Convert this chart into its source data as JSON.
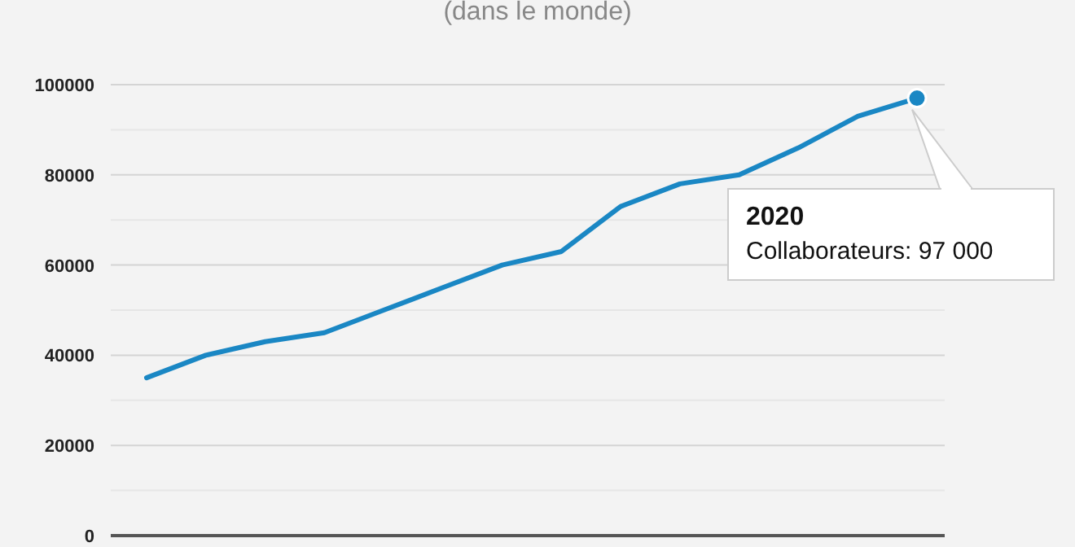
{
  "chart_data": {
    "type": "line",
    "title": "(dans le monde)",
    "categories": [
      null,
      null,
      null,
      null,
      null,
      null,
      null,
      null,
      null,
      null,
      null,
      null,
      null,
      null
    ],
    "series": [
      {
        "color": "#1a87c4",
        "values": [
          35000,
          40000,
          43000,
          45000,
          50000,
          55000,
          60000,
          63000,
          73000,
          78000,
          80000,
          86000,
          93000,
          97000
        ]
      }
    ],
    "ylim": [
      0,
      100000
    ],
    "yticks": [
      0,
      {
        "value": 10000,
        "label": null
      },
      20000,
      {
        "value": 30000,
        "label": null
      },
      40000,
      {
        "value": 50000,
        "label": null
      },
      60000,
      {
        "value": 70000,
        "label": null
      },
      80000,
      {
        "value": 90000,
        "label": null
      },
      100000
    ],
    "grid": "y",
    "marker": "none",
    "line_style": "solid",
    "tick_labels": "y",
    "annotations": [
      "2020",
      "Collaborateurs: 97 000"
    ]
  }
}
